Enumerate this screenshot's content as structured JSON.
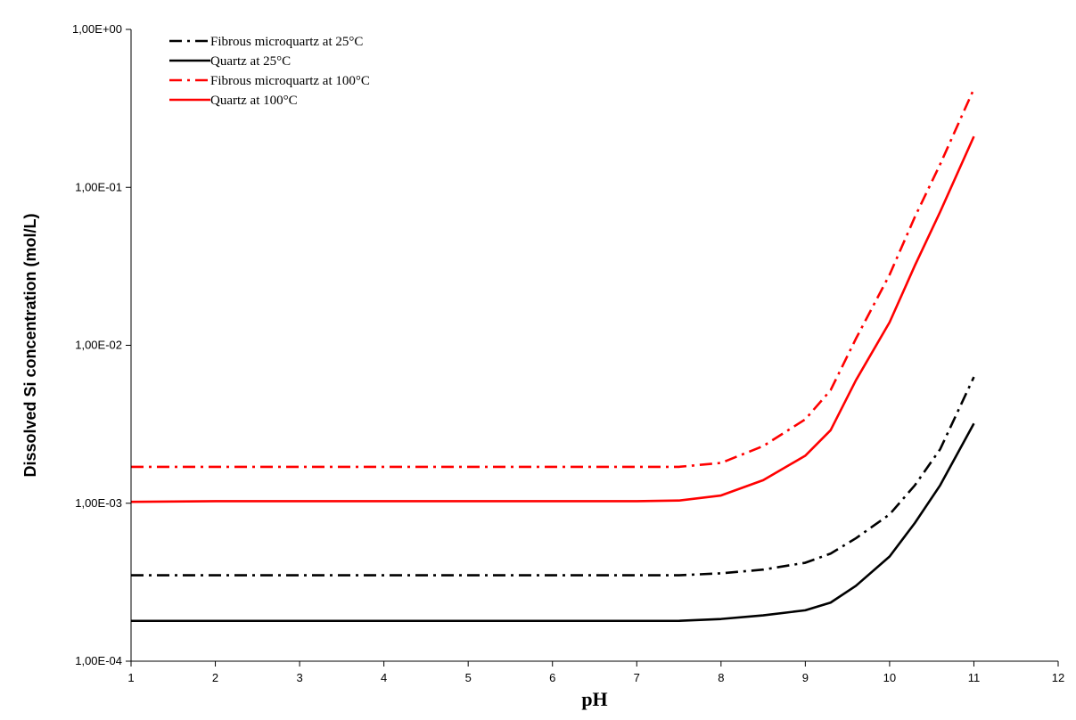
{
  "chart_data": {
    "type": "line",
    "title": "",
    "xlabel": "pH",
    "ylabel": "Dissolved Si concentration (mol/L)",
    "x_scale": "linear",
    "y_scale": "log",
    "xlim": [
      1,
      12
    ],
    "ylim": [
      0.0001,
      1
    ],
    "x_ticks": [
      1,
      2,
      3,
      4,
      5,
      6,
      7,
      8,
      9,
      10,
      11,
      12
    ],
    "x_tick_labels": [
      "1",
      "2",
      "3",
      "4",
      "5",
      "6",
      "7",
      "8",
      "9",
      "10",
      "11",
      "12"
    ],
    "y_ticks": [
      0.0001,
      0.001,
      0.01,
      0.1,
      1
    ],
    "y_tick_labels": [
      "1,00E-04",
      "1,00E-03",
      "1,00E-02",
      "1,00E-01",
      "1,00E+00"
    ],
    "grid": false,
    "legend_position": "top-left",
    "series": [
      {
        "name": "Fibrous microquartz at 25°C",
        "color": "#000000",
        "style": "dashdot",
        "x": [
          1,
          2,
          3,
          4,
          5,
          6,
          7,
          7.5,
          8,
          8.5,
          9,
          9.3,
          9.6,
          10,
          10.3,
          10.6,
          11
        ],
        "y": [
          0.00035,
          0.00035,
          0.00035,
          0.00035,
          0.00035,
          0.00035,
          0.00035,
          0.00035,
          0.00036,
          0.00038,
          0.00042,
          0.00048,
          0.0006,
          0.00085,
          0.0013,
          0.0022,
          0.0063
        ]
      },
      {
        "name": "Quartz at 25°C",
        "color": "#000000",
        "style": "solid",
        "x": [
          1,
          2,
          3,
          4,
          5,
          6,
          7,
          7.5,
          8,
          8.5,
          9,
          9.3,
          9.6,
          10,
          10.3,
          10.6,
          11
        ],
        "y": [
          0.00018,
          0.00018,
          0.00018,
          0.00018,
          0.00018,
          0.00018,
          0.00018,
          0.00018,
          0.000185,
          0.000195,
          0.00021,
          0.000235,
          0.0003,
          0.00046,
          0.00075,
          0.0013,
          0.0032
        ]
      },
      {
        "name": "Fibrous microquartz at 100°C",
        "color": "#ff0000",
        "style": "dashdot",
        "x": [
          1,
          2,
          3,
          4,
          5,
          6,
          7,
          7.5,
          8,
          8.5,
          9,
          9.3,
          9.6,
          10,
          10.3,
          10.6,
          11
        ],
        "y": [
          0.0017,
          0.0017,
          0.0017,
          0.0017,
          0.0017,
          0.0017,
          0.0017,
          0.0017,
          0.0018,
          0.0023,
          0.0034,
          0.0052,
          0.011,
          0.028,
          0.065,
          0.14,
          0.42
        ]
      },
      {
        "name": "Quartz at 100°C",
        "color": "#ff0000",
        "style": "solid",
        "x": [
          1,
          2,
          3,
          4,
          5,
          6,
          7,
          7.5,
          8,
          8.5,
          9,
          9.3,
          9.6,
          10,
          10.3,
          10.6,
          11
        ],
        "y": [
          0.00102,
          0.00103,
          0.00103,
          0.00103,
          0.00103,
          0.00103,
          0.00103,
          0.00104,
          0.00112,
          0.0014,
          0.002,
          0.0029,
          0.006,
          0.014,
          0.032,
          0.07,
          0.21
        ]
      }
    ]
  }
}
